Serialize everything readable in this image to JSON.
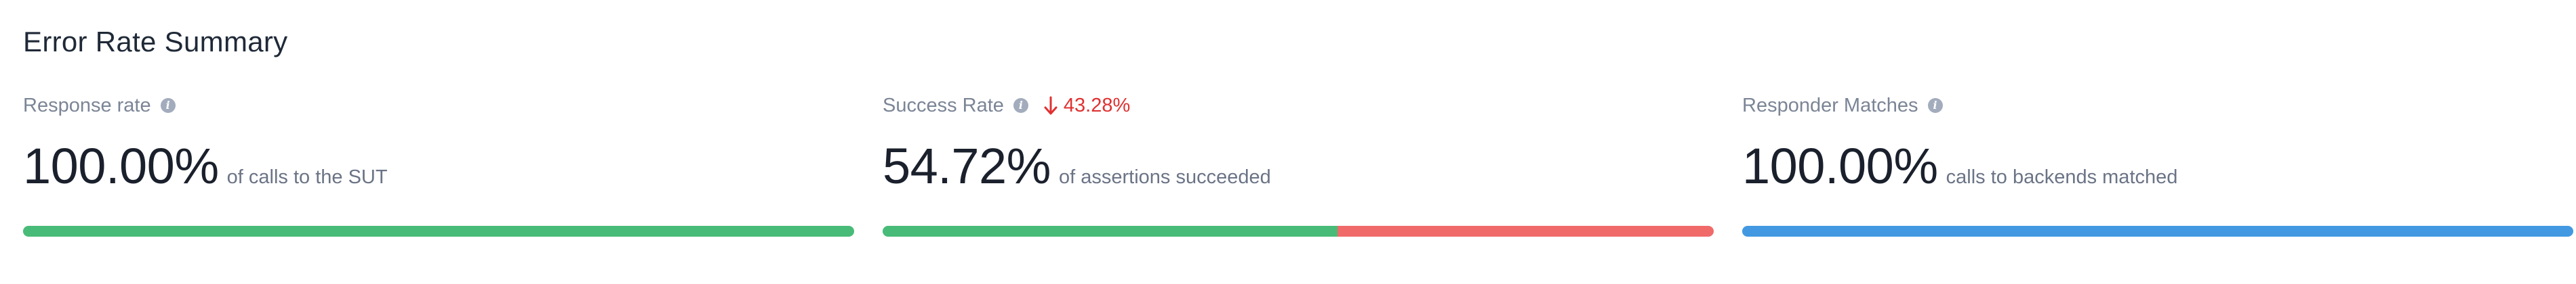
{
  "title": "Error Rate Summary",
  "colors": {
    "success": "#48bb78",
    "failure": "#f06a6a",
    "neutral": "#4299e1",
    "delta_down": "#e03131"
  },
  "cards": [
    {
      "label": "Response rate",
      "info_icon": "info-icon",
      "value": "100.00%",
      "description": "of calls to the SUT",
      "bar": {
        "fraction": 1.0,
        "fill_color": "#48bb78",
        "rest_color": "#f06a6a"
      }
    },
    {
      "label": "Success Rate",
      "info_icon": "info-icon",
      "delta": {
        "icon": "arrow-down-icon",
        "text": "43.28%"
      },
      "value": "54.72%",
      "description": "of assertions succeeded",
      "bar": {
        "fraction": 0.5472,
        "fill_color": "#48bb78",
        "rest_color": "#f06a6a"
      }
    },
    {
      "label": "Responder Matches",
      "info_icon": "info-icon",
      "value": "100.00%",
      "description": "calls to backends matched",
      "bar": {
        "fraction": 1.0,
        "fill_color": "#4299e1",
        "rest_color": "#e2e8f0"
      }
    }
  ]
}
